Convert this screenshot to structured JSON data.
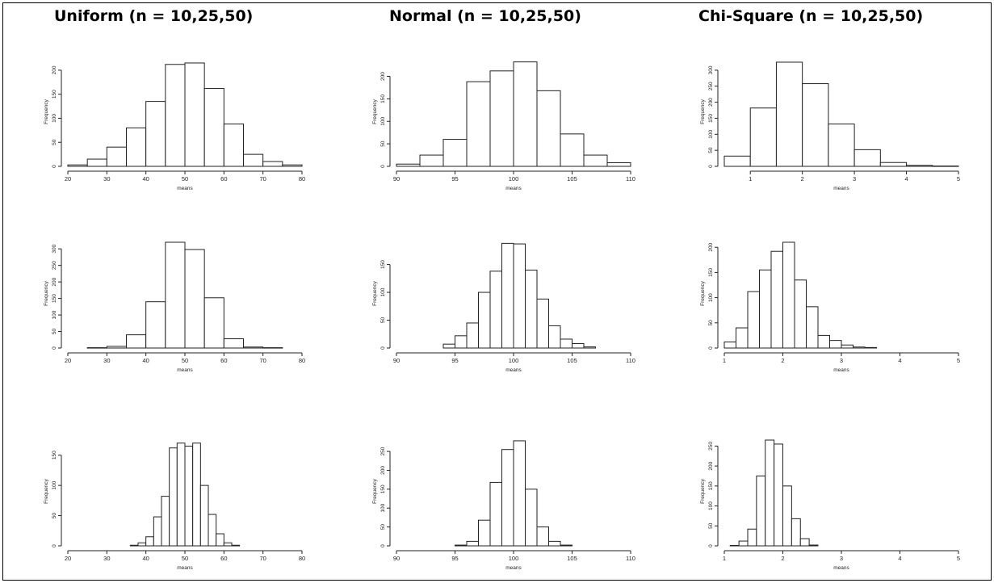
{
  "titles": [
    "Uniform (n = 10,25,50)",
    "Normal (n = 10,25,50)",
    "Chi-Square (n = 10,25,50)"
  ],
  "chart_data": [
    {
      "type": "bar",
      "group": "Uniform",
      "n": 10,
      "xlabel": "means",
      "ylabel": "Frequency",
      "xlim": [
        20,
        80
      ],
      "xticks": [
        20,
        30,
        40,
        50,
        60,
        70,
        80
      ],
      "ylim": [
        0,
        220
      ],
      "yticks": [
        0,
        50,
        100,
        150,
        200
      ],
      "bin_start": 20,
      "bin_width": 5,
      "values": [
        3,
        15,
        40,
        80,
        135,
        212,
        215,
        162,
        88,
        25,
        10,
        3
      ]
    },
    {
      "type": "bar",
      "group": "Normal",
      "n": 10,
      "xlabel": "means",
      "ylabel": "Frequency",
      "xlim": [
        90,
        110
      ],
      "xticks": [
        90,
        95,
        100,
        105,
        110
      ],
      "ylim": [
        0,
        235
      ],
      "yticks": [
        0,
        50,
        100,
        150,
        200
      ],
      "bin_start": 90,
      "bin_width": 2,
      "values": [
        5,
        25,
        60,
        188,
        212,
        232,
        168,
        72,
        25,
        8
      ]
    },
    {
      "type": "bar",
      "group": "Chi-Square",
      "n": 10,
      "xlabel": "means",
      "ylabel": "Frequency",
      "xlim": [
        0.5,
        5
      ],
      "xticks": [
        1,
        2,
        3,
        4,
        5
      ],
      "ylim": [
        0,
        330
      ],
      "yticks": [
        0,
        50,
        100,
        150,
        200,
        250,
        300
      ],
      "bin_start": 0.5,
      "bin_width": 0.5,
      "values": [
        32,
        182,
        325,
        258,
        132,
        52,
        12,
        3,
        1
      ]
    },
    {
      "type": "bar",
      "group": "Uniform",
      "n": 25,
      "xlabel": "means",
      "ylabel": "Frequency",
      "xlim": [
        20,
        80
      ],
      "xticks": [
        20,
        30,
        40,
        50,
        60,
        70,
        80
      ],
      "ylim": [
        0,
        320
      ],
      "yticks": [
        0,
        50,
        100,
        150,
        200,
        250,
        300
      ],
      "bin_start": 25,
      "bin_width": 5,
      "values": [
        1,
        5,
        40,
        140,
        320,
        298,
        152,
        28,
        3,
        1
      ]
    },
    {
      "type": "bar",
      "group": "Normal",
      "n": 25,
      "xlabel": "means",
      "ylabel": "Frequency",
      "xlim": [
        90,
        110
      ],
      "xticks": [
        90,
        95,
        100,
        105,
        110
      ],
      "ylim": [
        0,
        190
      ],
      "yticks": [
        0,
        50,
        100,
        150
      ],
      "bin_start": 94,
      "bin_width": 1,
      "values": [
        7,
        22,
        45,
        100,
        138,
        188,
        187,
        140,
        88,
        40,
        16,
        8,
        2
      ]
    },
    {
      "type": "bar",
      "group": "Chi-Square",
      "n": 25,
      "xlabel": "means",
      "ylabel": "Frequency",
      "xlim": [
        1,
        5
      ],
      "xticks": [
        1,
        2,
        3,
        4,
        5
      ],
      "ylim": [
        0,
        210
      ],
      "yticks": [
        0,
        50,
        100,
        150,
        200
      ],
      "bin_start": 1,
      "bin_width": 0.2,
      "values": [
        12,
        40,
        112,
        155,
        192,
        210,
        135,
        82,
        25,
        15,
        6,
        2,
        1
      ]
    },
    {
      "type": "bar",
      "group": "Uniform",
      "n": 50,
      "xlabel": "means",
      "ylabel": "Frequency",
      "xlim": [
        20,
        80
      ],
      "xticks": [
        20,
        30,
        40,
        50,
        60,
        70,
        80
      ],
      "ylim": [
        0,
        175
      ],
      "yticks": [
        0,
        50,
        100,
        150
      ],
      "bin_start": 36,
      "bin_width": 2,
      "values": [
        1,
        5,
        15,
        48,
        82,
        162,
        170,
        165,
        170,
        100,
        52,
        20,
        5,
        1
      ]
    },
    {
      "type": "bar",
      "group": "Normal",
      "n": 50,
      "xlabel": "means",
      "ylabel": "Frequency",
      "xlim": [
        90,
        110
      ],
      "xticks": [
        90,
        95,
        100,
        105,
        110
      ],
      "ylim": [
        0,
        280
      ],
      "yticks": [
        0,
        50,
        100,
        150,
        200,
        250
      ],
      "bin_start": 95,
      "bin_width": 1,
      "values": [
        2,
        12,
        68,
        168,
        255,
        278,
        150,
        50,
        12,
        2
      ]
    },
    {
      "type": "bar",
      "group": "Chi-Square",
      "n": 50,
      "xlabel": "means",
      "ylabel": "Frequency",
      "xlim": [
        1,
        5
      ],
      "xticks": [
        1,
        2,
        3,
        4,
        5
      ],
      "ylim": [
        0,
        265
      ],
      "yticks": [
        0,
        50,
        100,
        150,
        200,
        250
      ],
      "bin_start": 1.1,
      "bin_width": 0.15,
      "values": [
        1,
        12,
        42,
        175,
        265,
        255,
        150,
        68,
        18,
        2
      ]
    }
  ]
}
